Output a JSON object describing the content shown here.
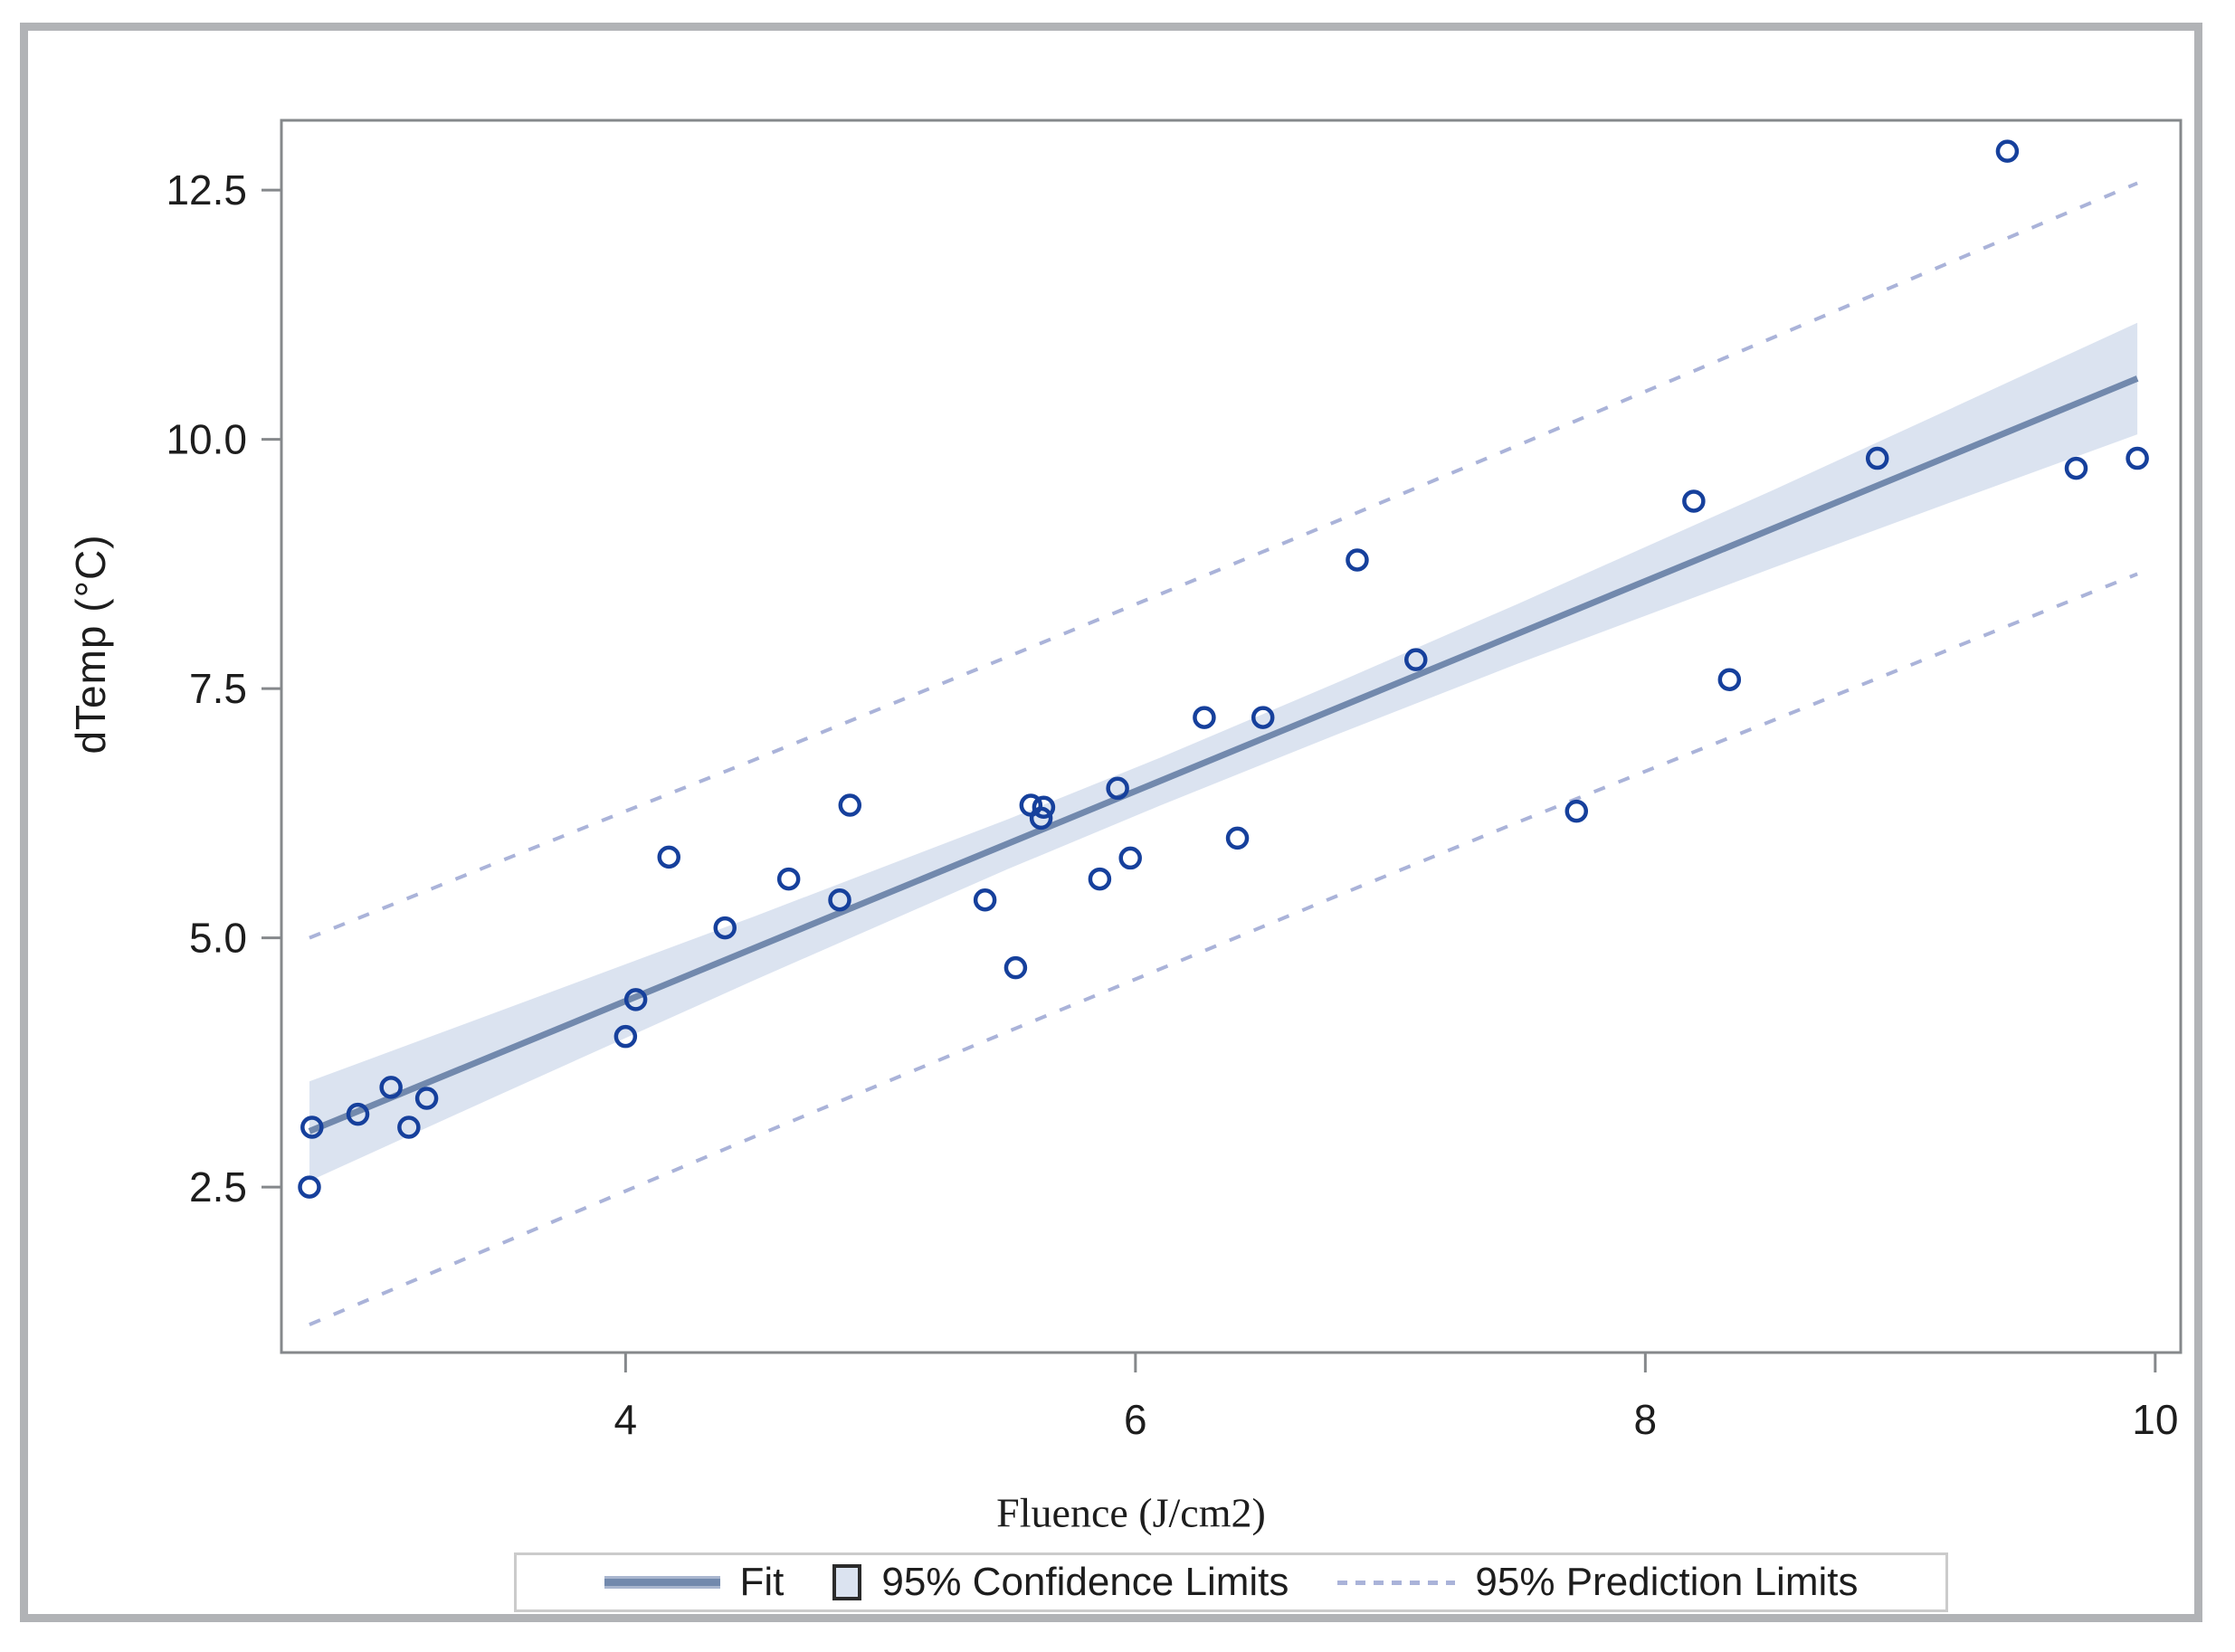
{
  "figure": {
    "background": "#ffffff",
    "outer_border_color": "#b1b3b6",
    "frame_color": "#85888b",
    "text_color": "#1d1d1d"
  },
  "chart_data": {
    "type": "scatter",
    "title": "",
    "xlabel": "Fluence (J/cm2)",
    "ylabel": "dTemp  (°C)",
    "xlim": [
      2.65,
      10.1
    ],
    "ylim": [
      0.84,
      13.2
    ],
    "grid": "off",
    "legend_position": "bottom-center",
    "x_ticks": {
      "values": [
        4,
        6,
        8,
        10
      ],
      "labels": [
        "4",
        "6",
        "8",
        "10"
      ]
    },
    "y_ticks": {
      "values": [
        2.5,
        5.0,
        7.5,
        10.0,
        12.5
      ],
      "labels": [
        "2.5",
        "5.0",
        "7.5",
        "10.0",
        "12.5"
      ]
    },
    "series": [
      {
        "name": "observations",
        "type": "scatter",
        "marker": "open-circle",
        "color": "#16409c",
        "marker_radius": 10.5,
        "marker_stroke": 4.5,
        "points": [
          [
            2.76,
            2.5
          ],
          [
            2.77,
            3.1
          ],
          [
            2.95,
            3.23
          ],
          [
            3.08,
            3.5
          ],
          [
            3.15,
            3.1
          ],
          [
            3.22,
            3.39
          ],
          [
            4.0,
            4.01
          ],
          [
            4.04,
            4.38
          ],
          [
            4.17,
            5.81
          ],
          [
            4.39,
            5.1
          ],
          [
            4.64,
            5.59
          ],
          [
            4.84,
            5.38
          ],
          [
            4.88,
            6.33
          ],
          [
            5.41,
            5.38
          ],
          [
            5.53,
            4.7
          ],
          [
            5.59,
            6.33
          ],
          [
            5.63,
            6.2
          ],
          [
            5.64,
            6.31
          ],
          [
            5.86,
            5.59
          ],
          [
            5.93,
            6.5
          ],
          [
            5.98,
            5.8
          ],
          [
            6.27,
            7.21
          ],
          [
            6.4,
            6.0
          ],
          [
            6.5,
            7.21
          ],
          [
            6.87,
            8.79
          ],
          [
            7.1,
            7.79
          ],
          [
            7.73,
            6.27
          ],
          [
            8.19,
            9.38
          ],
          [
            8.33,
            7.59
          ],
          [
            8.91,
            9.81
          ],
          [
            9.42,
            12.89
          ],
          [
            9.69,
            9.71
          ],
          [
            9.93,
            9.81
          ]
        ]
      },
      {
        "name": "Fit",
        "type": "line",
        "color": "#7289ad",
        "width": 7,
        "x": [
          2.76,
          9.93
        ],
        "y": [
          3.06,
          10.61
        ]
      },
      {
        "name": "95% Confidence Limits",
        "type": "band",
        "color": "#dbe3f0",
        "x": [
          2.76,
          3.5,
          4.5,
          5.5,
          6.1,
          6.8,
          7.5,
          8.5,
          9.2,
          9.93
        ],
        "upper": [
          3.56,
          4.26,
          5.21,
          6.19,
          6.81,
          7.57,
          8.35,
          9.49,
          10.31,
          11.17
        ],
        "lower": [
          2.56,
          3.42,
          4.57,
          5.69,
          6.33,
          7.05,
          7.75,
          8.71,
          9.37,
          10.05
        ]
      },
      {
        "name": "95% Prediction Limits",
        "type": "dashed-pair",
        "color": "#aab3d9",
        "width": 4,
        "dash": "13 16",
        "x": [
          2.76,
          3.5,
          4.5,
          5.5,
          6.1,
          6.8,
          7.5,
          8.5,
          9.2,
          9.93
        ],
        "upper": [
          5.0,
          5.76,
          6.78,
          7.82,
          8.45,
          9.19,
          9.94,
          11.02,
          11.78,
          12.57
        ],
        "lower": [
          1.12,
          1.92,
          3.0,
          4.06,
          4.69,
          5.43,
          6.16,
          7.18,
          7.9,
          8.65
        ]
      }
    ]
  },
  "legend": {
    "items": [
      {
        "label": "Fit",
        "swatch": "line"
      },
      {
        "label": "95% Confidence Limits",
        "swatch": "square"
      },
      {
        "label": "95% Prediction Limits",
        "swatch": "dashes"
      }
    ]
  }
}
